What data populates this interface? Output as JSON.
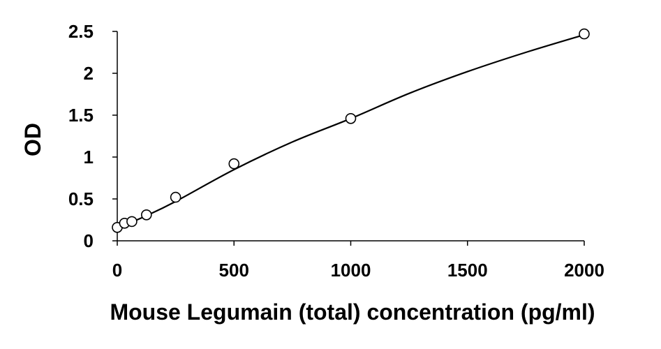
{
  "chart_data": {
    "type": "scatter",
    "title": "",
    "xlabel": "Mouse Legumain (total) concentration (pg/ml)",
    "ylabel": "OD",
    "xlim": [
      0,
      2000
    ],
    "ylim": [
      0,
      2.5
    ],
    "x_ticks": [
      "0",
      "500",
      "1000",
      "1500",
      "2000"
    ],
    "y_ticks": [
      "0",
      "0.5",
      "1",
      "1.5",
      "2",
      "2.5"
    ],
    "grid": false,
    "legend": "none",
    "series": [
      {
        "type": "scatter",
        "marker": "open-circle",
        "x": [
          0,
          31.25,
          62.5,
          125,
          250,
          500,
          1000,
          2000
        ],
        "y": [
          0.16,
          0.21,
          0.23,
          0.31,
          0.52,
          0.92,
          1.46,
          2.47
        ]
      },
      {
        "type": "line",
        "smooth": true,
        "x": [
          0,
          125,
          250,
          500,
          750,
          1000,
          1250,
          1500,
          1750,
          2000
        ],
        "y": [
          0.15,
          0.3,
          0.47,
          0.85,
          1.18,
          1.46,
          1.76,
          2.02,
          2.25,
          2.46
        ]
      }
    ],
    "colors": {
      "axis": "#000000",
      "marker_stroke": "#000000",
      "marker_fill": "#ffffff",
      "curve": "#000000"
    }
  }
}
